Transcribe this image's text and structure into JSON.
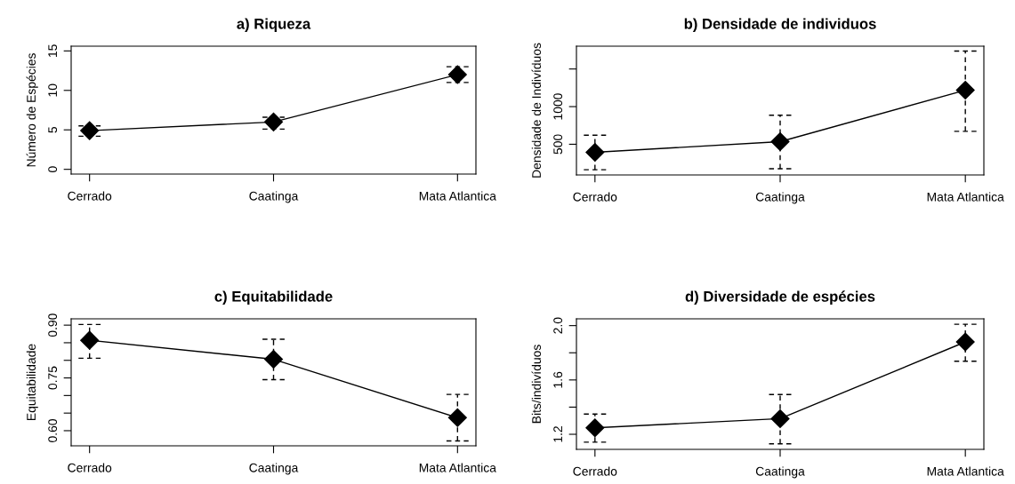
{
  "chart_data": [
    {
      "type": "line",
      "title": "a) Riqueza",
      "ylabel": "Número de Espécies",
      "categories": [
        "Cerrado",
        "Caatinga",
        "Mata Atlantica"
      ],
      "values": [
        4.9,
        6.0,
        12.0
      ],
      "errors": [
        [
          4.2,
          5.5
        ],
        [
          5.1,
          6.6
        ],
        [
          11.0,
          13.0
        ]
      ],
      "color": "#000000",
      "marker": "diamond",
      "line_style": "solid",
      "ylim": [
        -0.6,
        15.6
      ],
      "yticks": [
        0,
        5,
        10,
        15
      ],
      "grid": false
    },
    {
      "type": "line",
      "title": "b) Densidade de individuos",
      "ylabel": "Densidade de Indivíduos",
      "categories": [
        "Cerrado",
        "Caatinga",
        "Mata Atlantica"
      ],
      "values": [
        393,
        534,
        1219
      ],
      "errors": [
        [
          161,
          620
        ],
        [
          175,
          886
        ],
        [
          672,
          1738
        ]
      ],
      "color": "#000000",
      "marker": "diamond",
      "line_style": "solid",
      "ylim": [
        92,
        1803
      ],
      "yticks": [
        500,
        1000,
        {
          "value": 1500,
          "label": null
        }
      ],
      "grid": false
    },
    {
      "type": "line",
      "title": "c) Equitabilidade",
      "ylabel": "Equitabilidade",
      "categories": [
        "Cerrado",
        "Caatinga",
        "Mata Atlantica"
      ],
      "values": [
        0.857,
        0.803,
        0.637
      ],
      "errors": [
        [
          0.806,
          0.902
        ],
        [
          0.745,
          0.86
        ],
        [
          0.571,
          0.703
        ]
      ],
      "color": "#000000",
      "marker": "diamond",
      "line_style": "solid",
      "ylim": [
        0.557,
        0.918
      ],
      "yticks": [
        {
          "value": 0.6,
          "label": "0.60"
        },
        {
          "value": 0.65,
          "label": null
        },
        {
          "value": 0.7,
          "label": null
        },
        {
          "value": 0.75,
          "label": "0.75"
        },
        {
          "value": 0.8,
          "label": null
        },
        {
          "value": 0.85,
          "label": null
        },
        {
          "value": 0.9,
          "label": "0.90"
        }
      ],
      "grid": false
    },
    {
      "type": "line",
      "title": "d) Diversidade de espécies",
      "ylabel": "Bits/indivíduos",
      "categories": [
        "Cerrado",
        "Caatinga",
        "Mata Atlantica"
      ],
      "values": [
        1.248,
        1.315,
        1.88
      ],
      "errors": [
        [
          1.142,
          1.349
        ],
        [
          1.13,
          1.493
        ],
        [
          1.738,
          2.01
        ]
      ],
      "color": "#000000",
      "marker": "diamond",
      "line_style": "solid",
      "ylim": [
        1.089,
        2.05
      ],
      "yticks": [
        {
          "value": 1.2,
          "label": "1.2"
        },
        {
          "value": 1.4,
          "label": null
        },
        {
          "value": 1.6,
          "label": "1.6"
        },
        {
          "value": 1.8,
          "label": null
        },
        {
          "value": 2.0,
          "label": "2.0"
        }
      ],
      "grid": false
    }
  ]
}
